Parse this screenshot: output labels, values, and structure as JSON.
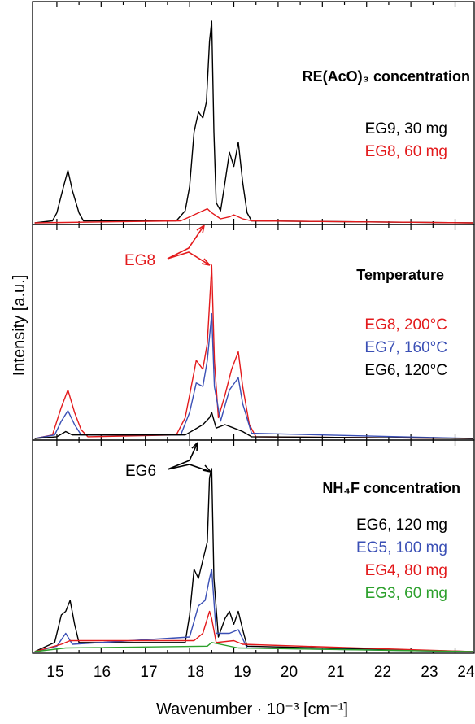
{
  "chart_data": {
    "type": "line",
    "xlabel": "Wavenumber · 10⁻³ [cm⁻¹]",
    "ylabel": "Intensity [a.u.]",
    "xlim": [
      14.45,
      24.45
    ],
    "x_ticks": [
      "15",
      "16",
      "17",
      "18",
      "19",
      "20",
      "21",
      "22",
      "23",
      "24"
    ],
    "panels": [
      {
        "title": "RE(AcO)₃ concentration",
        "series": [
          {
            "name": "EG9, 30 mg",
            "color": "#000000",
            "points": [
              [
                14.9,
                0.01
              ],
              [
                15.0,
                0.05
              ],
              [
                15.15,
                0.18
              ],
              [
                15.25,
                0.26
              ],
              [
                15.35,
                0.16
              ],
              [
                15.5,
                0.05
              ],
              [
                15.6,
                0.01
              ],
              [
                17.7,
                0.01
              ],
              [
                17.9,
                0.06
              ],
              [
                18.0,
                0.18
              ],
              [
                18.1,
                0.45
              ],
              [
                18.2,
                0.55
              ],
              [
                18.3,
                0.52
              ],
              [
                18.38,
                0.6
              ],
              [
                18.45,
                0.9
              ],
              [
                18.5,
                1.0
              ],
              [
                18.55,
                0.45
              ],
              [
                18.6,
                0.1
              ],
              [
                18.7,
                0.06
              ],
              [
                18.8,
                0.2
              ],
              [
                18.9,
                0.35
              ],
              [
                19.0,
                0.28
              ],
              [
                19.1,
                0.4
              ],
              [
                19.2,
                0.2
              ],
              [
                19.3,
                0.05
              ],
              [
                19.4,
                0.01
              ]
            ]
          },
          {
            "name": "EG8, 60 mg",
            "color": "#e31a1c",
            "points": [
              [
                17.8,
                0.01
              ],
              [
                18.0,
                0.03
              ],
              [
                18.2,
                0.05
              ],
              [
                18.4,
                0.07
              ],
              [
                18.5,
                0.05
              ],
              [
                18.7,
                0.02
              ],
              [
                18.9,
                0.03
              ],
              [
                19.0,
                0.04
              ],
              [
                19.2,
                0.02
              ],
              [
                19.4,
                0.01
              ]
            ]
          }
        ]
      },
      {
        "title": "Temperature",
        "series": [
          {
            "name": "EG8, 200°C",
            "color": "#e31a1c",
            "points": [
              [
                14.9,
                0.02
              ],
              [
                15.0,
                0.1
              ],
              [
                15.1,
                0.18
              ],
              [
                15.25,
                0.28
              ],
              [
                15.4,
                0.15
              ],
              [
                15.55,
                0.05
              ],
              [
                15.7,
                0.01
              ],
              [
                17.7,
                0.02
              ],
              [
                17.9,
                0.12
              ],
              [
                18.0,
                0.25
              ],
              [
                18.15,
                0.45
              ],
              [
                18.3,
                0.4
              ],
              [
                18.4,
                0.55
              ],
              [
                18.5,
                1.0
              ],
              [
                18.56,
                0.45
              ],
              [
                18.65,
                0.12
              ],
              [
                18.8,
                0.25
              ],
              [
                18.95,
                0.4
              ],
              [
                19.1,
                0.5
              ],
              [
                19.2,
                0.3
              ],
              [
                19.35,
                0.08
              ],
              [
                19.5,
                0.01
              ]
            ]
          },
          {
            "name": "EG7, 160°C",
            "color": "#3a4fb5",
            "points": [
              [
                14.95,
                0.02
              ],
              [
                15.1,
                0.1
              ],
              [
                15.25,
                0.16
              ],
              [
                15.4,
                0.08
              ],
              [
                15.55,
                0.02
              ],
              [
                17.8,
                0.02
              ],
              [
                18.0,
                0.15
              ],
              [
                18.15,
                0.32
              ],
              [
                18.3,
                0.3
              ],
              [
                18.4,
                0.45
              ],
              [
                18.5,
                0.72
              ],
              [
                18.56,
                0.3
              ],
              [
                18.7,
                0.1
              ],
              [
                18.9,
                0.28
              ],
              [
                19.1,
                0.35
              ],
              [
                19.2,
                0.2
              ],
              [
                19.4,
                0.03
              ]
            ]
          },
          {
            "name": "EG6, 120°C",
            "color": "#000000",
            "points": [
              [
                15.0,
                0.01
              ],
              [
                15.2,
                0.04
              ],
              [
                15.35,
                0.02
              ],
              [
                17.9,
                0.02
              ],
              [
                18.1,
                0.05
              ],
              [
                18.3,
                0.08
              ],
              [
                18.45,
                0.12
              ],
              [
                18.5,
                0.15
              ],
              [
                18.6,
                0.06
              ],
              [
                18.8,
                0.08
              ],
              [
                19.0,
                0.06
              ],
              [
                19.2,
                0.04
              ],
              [
                19.4,
                0.01
              ]
            ]
          }
        ]
      },
      {
        "title": "NH₄F concentration",
        "series": [
          {
            "name": "EG6, 120 mg",
            "color": "#000000",
            "points": [
              [
                14.95,
                0.05
              ],
              [
                15.1,
                0.2
              ],
              [
                15.2,
                0.22
              ],
              [
                15.3,
                0.28
              ],
              [
                15.4,
                0.15
              ],
              [
                15.5,
                0.05
              ],
              [
                17.9,
                0.05
              ],
              [
                18.0,
                0.2
              ],
              [
                18.1,
                0.45
              ],
              [
                18.2,
                0.4
              ],
              [
                18.3,
                0.5
              ],
              [
                18.4,
                0.6
              ],
              [
                18.45,
                0.95
              ],
              [
                18.5,
                1.0
              ],
              [
                18.55,
                0.4
              ],
              [
                18.65,
                0.08
              ],
              [
                18.8,
                0.18
              ],
              [
                18.9,
                0.22
              ],
              [
                19.0,
                0.15
              ],
              [
                19.1,
                0.22
              ],
              [
                19.2,
                0.12
              ],
              [
                19.3,
                0.03
              ]
            ]
          },
          {
            "name": "EG5, 100 mg",
            "color": "#3a4fb5",
            "points": [
              [
                15.0,
                0.03
              ],
              [
                15.2,
                0.1
              ],
              [
                15.35,
                0.04
              ],
              [
                18.0,
                0.08
              ],
              [
                18.2,
                0.25
              ],
              [
                18.35,
                0.28
              ],
              [
                18.45,
                0.4
              ],
              [
                18.5,
                0.45
              ],
              [
                18.6,
                0.1
              ],
              [
                18.9,
                0.1
              ],
              [
                19.1,
                0.12
              ],
              [
                19.3,
                0.02
              ]
            ]
          },
          {
            "name": "EG4, 80 mg",
            "color": "#e31a1c",
            "points": [
              [
                15.1,
                0.04
              ],
              [
                15.3,
                0.06
              ],
              [
                18.1,
                0.06
              ],
              [
                18.3,
                0.1
              ],
              [
                18.45,
                0.22
              ],
              [
                18.5,
                0.18
              ],
              [
                18.6,
                0.05
              ],
              [
                19.0,
                0.06
              ],
              [
                19.2,
                0.04
              ]
            ]
          },
          {
            "name": "EG3, 60 mg",
            "color": "#2ca02c",
            "points": [
              [
                15.2,
                0.02
              ],
              [
                18.4,
                0.03
              ],
              [
                18.5,
                0.05
              ],
              [
                19.1,
                0.02
              ]
            ]
          }
        ]
      }
    ],
    "annotations": [
      {
        "text": "EG8",
        "color": "#e31a1c"
      },
      {
        "text": "EG6",
        "color": "#000000"
      }
    ]
  }
}
